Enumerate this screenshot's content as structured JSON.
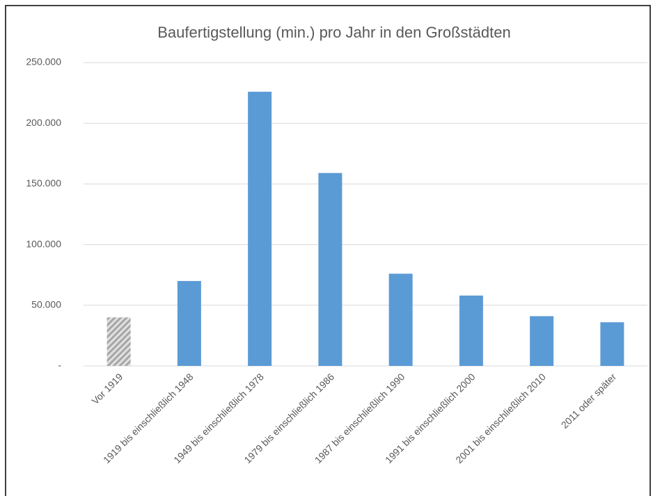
{
  "chart_data": {
    "type": "bar",
    "title": "Baufertigstellung  (min.) pro Jahr in den Großstädten",
    "categories": [
      "Vor 1919",
      "1919 bis einschließlich 1948",
      "1949 bis einschließlich 1978",
      "1979 bis einschließlich 1986",
      "1987 bis einschließlich 1990",
      "1991 bis einschließlich 2000",
      "2001 bis einschließlich 2010",
      "2011 oder später"
    ],
    "values": [
      40000,
      70000,
      226000,
      159000,
      76000,
      58000,
      41000,
      36000
    ],
    "colors": [
      "#a6a6a6",
      "#5b9bd5",
      "#5b9bd5",
      "#5b9bd5",
      "#5b9bd5",
      "#5b9bd5",
      "#5b9bd5",
      "#5b9bd5"
    ],
    "hatched": [
      true,
      false,
      false,
      false,
      false,
      false,
      false,
      false
    ],
    "ylim": [
      0,
      250000
    ],
    "yticks": [
      {
        "value": 0,
        "label": "-"
      },
      {
        "value": 50000,
        "label": "50.000"
      },
      {
        "value": 100000,
        "label": "100.000"
      },
      {
        "value": 150000,
        "label": "150.000"
      },
      {
        "value": 200000,
        "label": "200.000"
      },
      {
        "value": 250000,
        "label": "250.000"
      }
    ],
    "grid": true
  }
}
